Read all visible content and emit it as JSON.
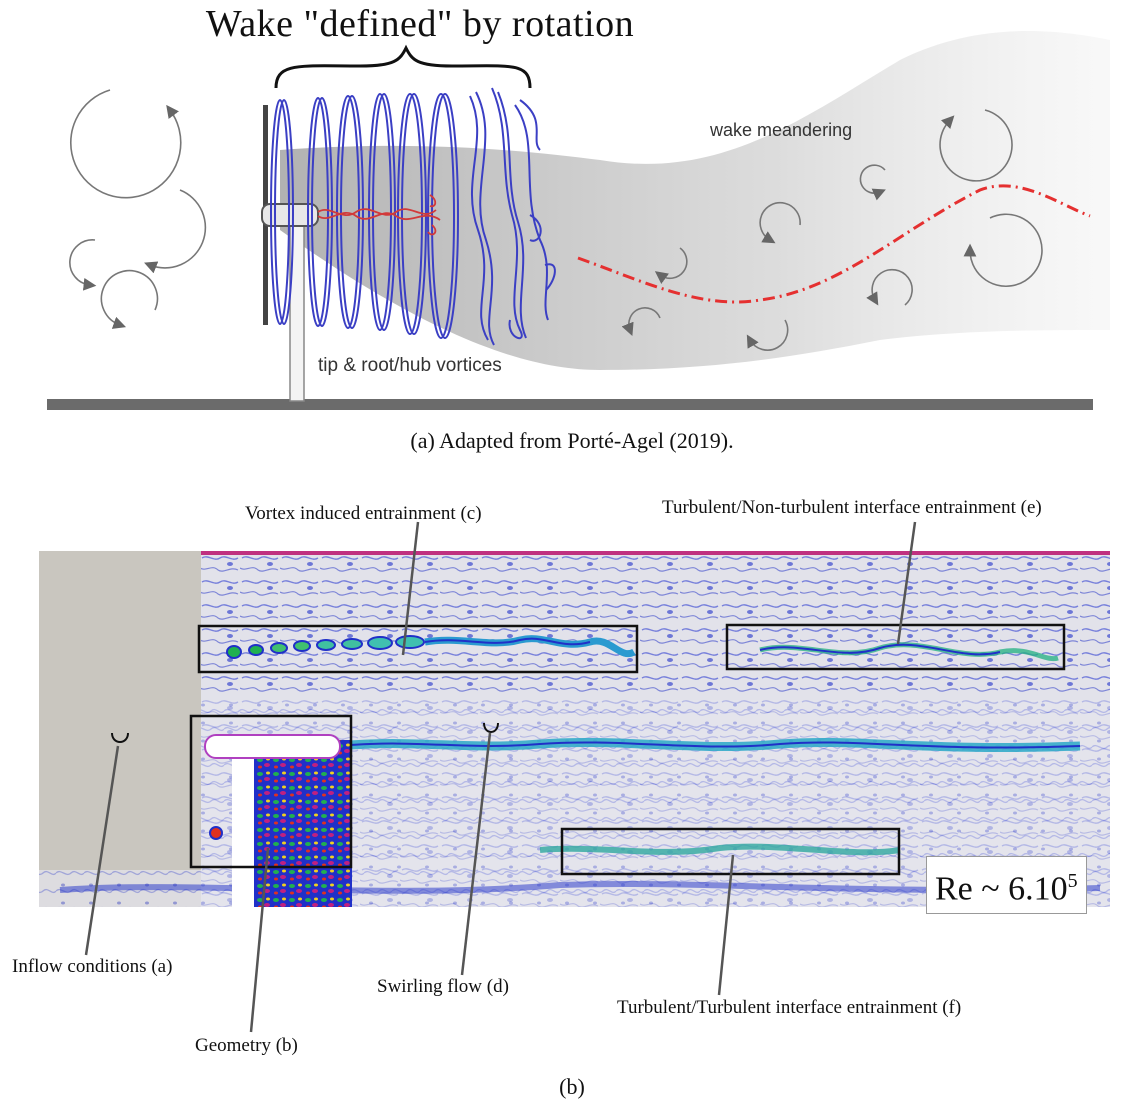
{
  "panel_a": {
    "title": "Wake \"defined\" by rotation",
    "label_meandering": "wake meandering",
    "label_vortices": "tip & root/hub vortices",
    "caption": "(a) Adapted from Porté-Agel (2019)."
  },
  "panel_b": {
    "label_vortex_entrainment": "Vortex induced entrainment (c)",
    "label_tnt_entrainment": "Turbulent/Non-turbulent interface entrainment (e)",
    "label_inflow": "Inflow conditions (a)",
    "label_geometry": "Geometry  (b)",
    "label_swirling": "Swirling flow (d)",
    "label_tt_entrainment": "Turbulent/Turbulent interface entrainment (f)",
    "re_prefix": "Re ~ 6.10",
    "re_exponent": "5",
    "caption": "(b)"
  },
  "colors": {
    "ground": "#6b6b6b",
    "helix": "#3b3fc4",
    "hub_vortex": "#d23a3a",
    "wake_center": "#e53030",
    "field_bg": "#e2e2ea",
    "field_blue": "#2030c8",
    "inflow_block": "#c9c6bf",
    "box_stroke": "#111111"
  }
}
